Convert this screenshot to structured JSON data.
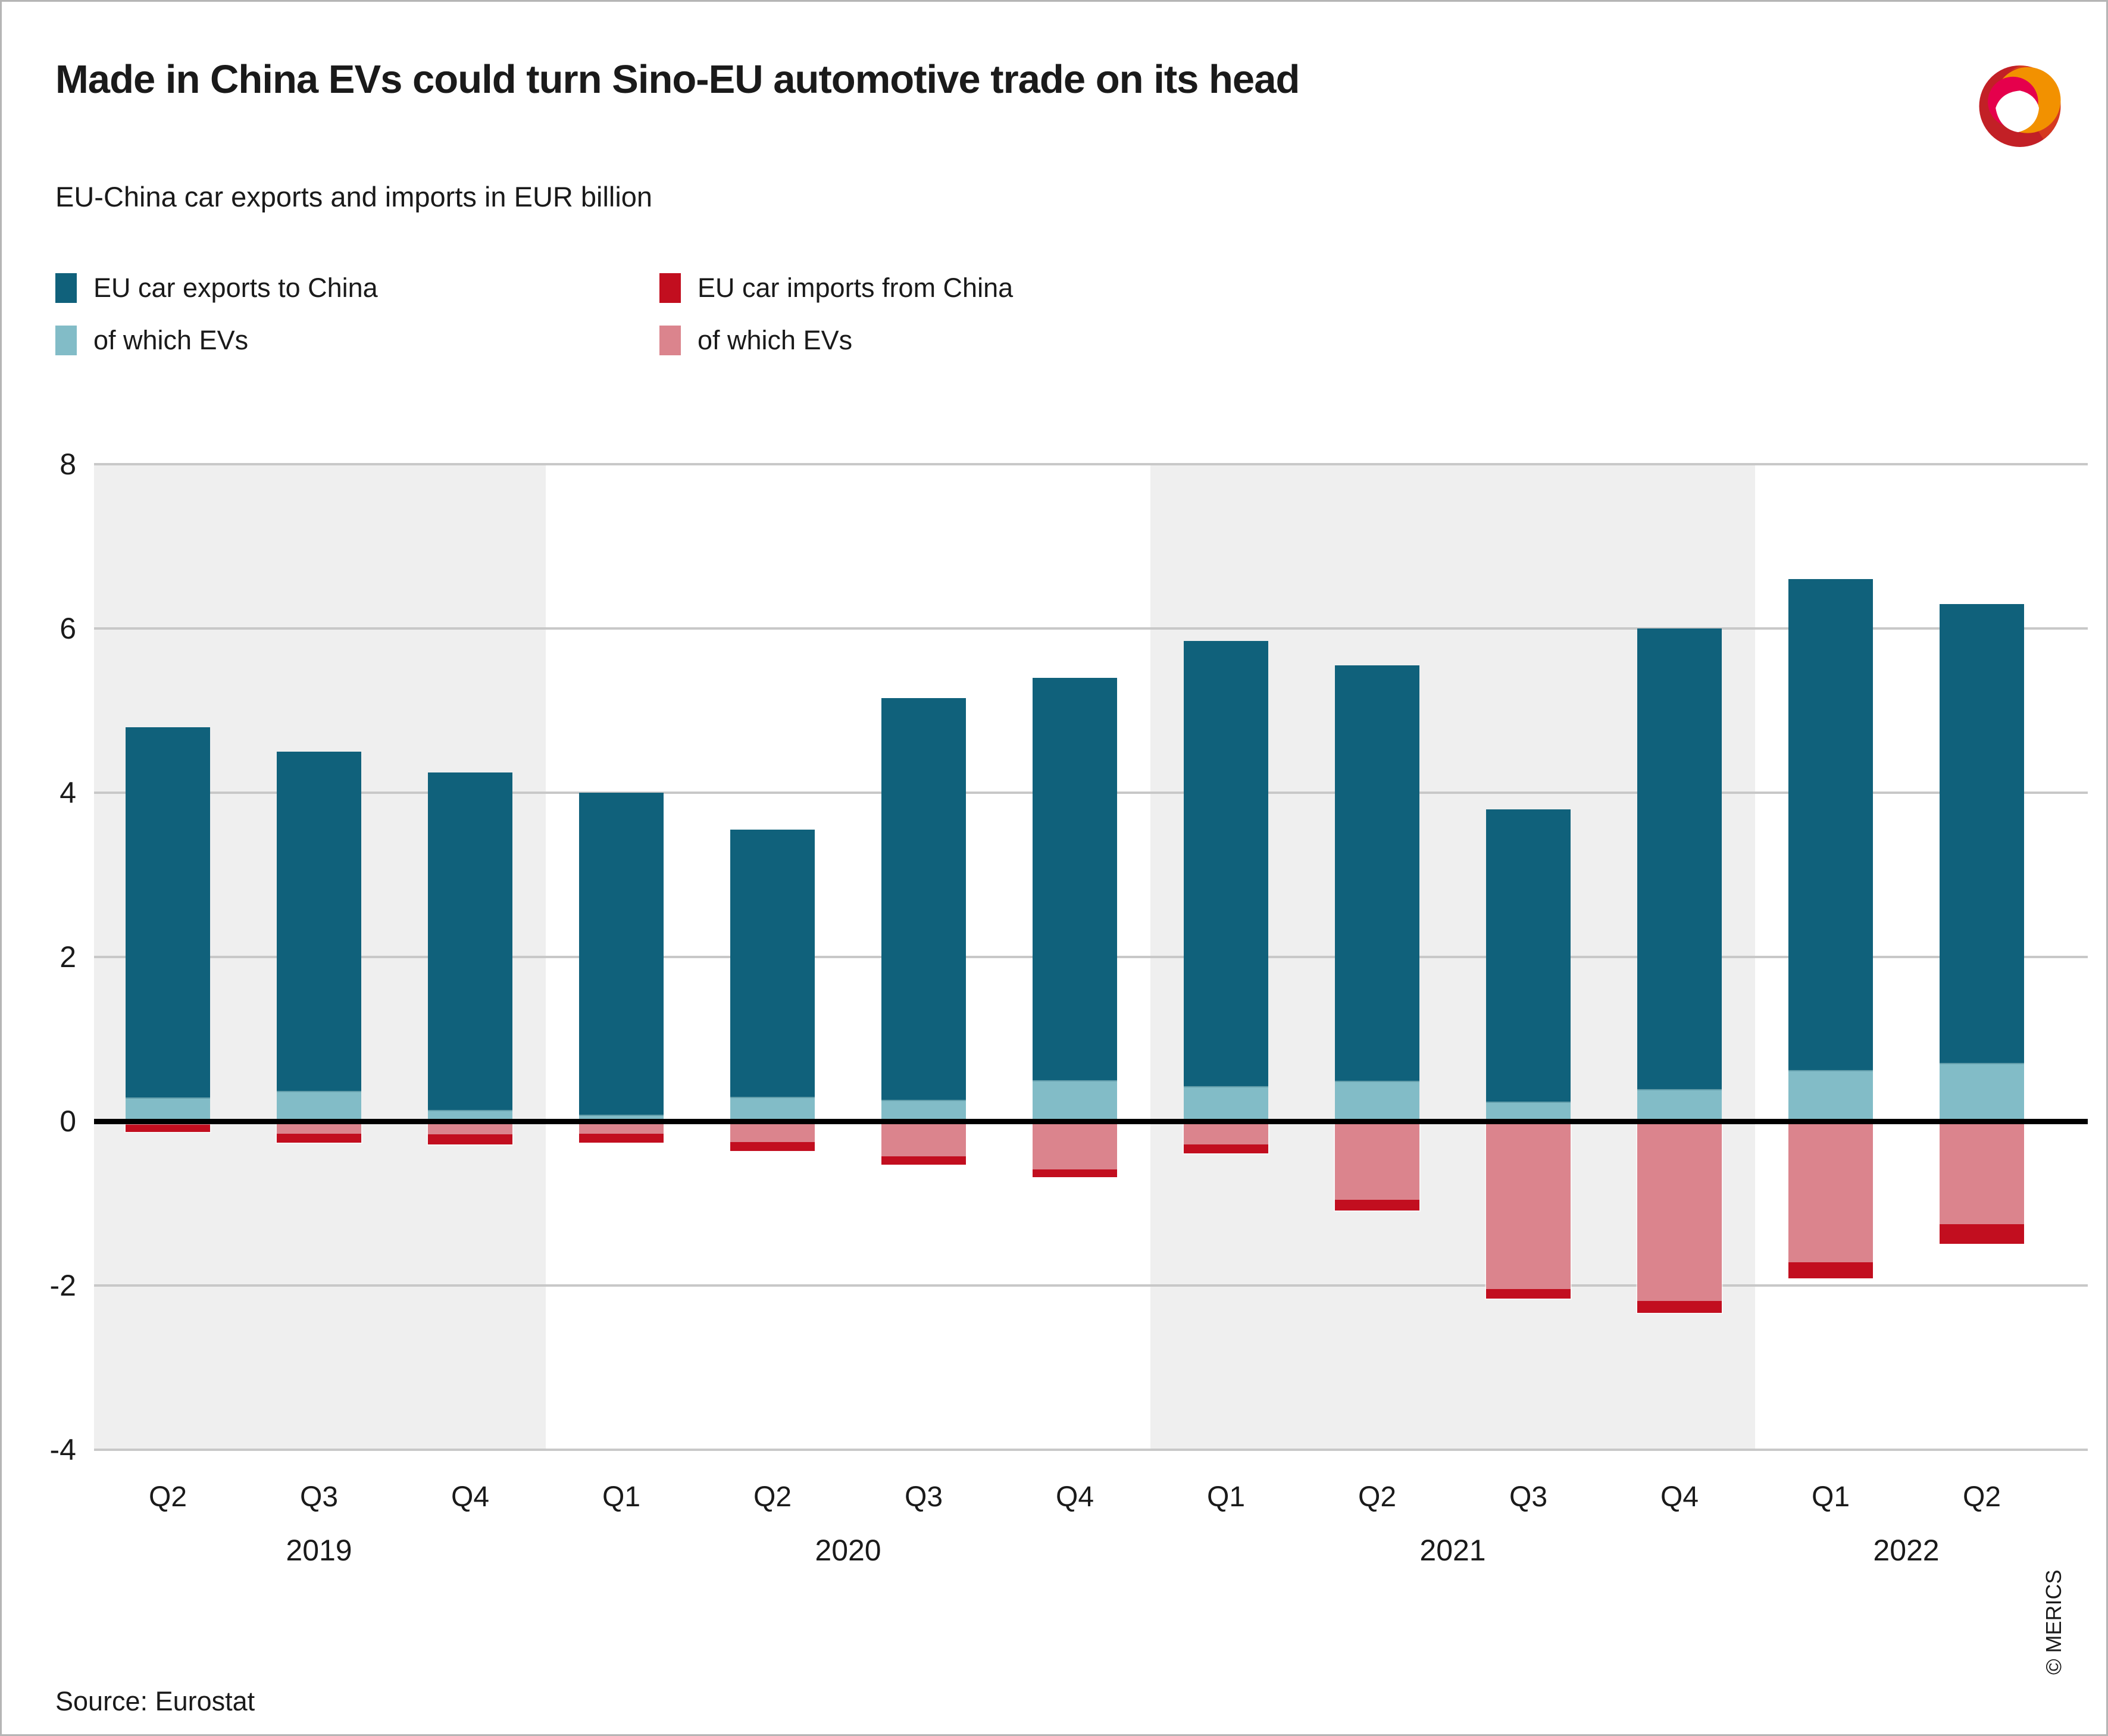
{
  "header": {
    "title": "Made in China EVs could turn Sino-EU automotive trade on its head",
    "subtitle": "EU-China car exports and imports in EUR billion"
  },
  "footer": {
    "source": "Source: Eurostat",
    "credit": "© MERICS"
  },
  "logo_colors": {
    "dark_red": "#c22026",
    "orange": "#f29100",
    "magenta": "#e5004c",
    "flame": "#e84e1b"
  },
  "chart_data": {
    "type": "bar",
    "title": "Made in China EVs could turn Sino-EU automotive trade on its head",
    "subtitle": "EU-China car exports and imports in EUR billion",
    "ylim": [
      -4,
      8
    ],
    "yticks": [
      8,
      6,
      4,
      2,
      0,
      -2,
      -4
    ],
    "grid": "horizontal",
    "legend_position": "top-left",
    "categories": [
      "Q2",
      "Q3",
      "Q4",
      "Q1",
      "Q2",
      "Q3",
      "Q4",
      "Q1",
      "Q2",
      "Q3",
      "Q4",
      "Q1",
      "Q2"
    ],
    "groups": [
      {
        "label": "2019",
        "count": 3,
        "shaded": true
      },
      {
        "label": "2020",
        "count": 4,
        "shaded": false
      },
      {
        "label": "2021",
        "count": 4,
        "shaded": true
      },
      {
        "label": "2022",
        "count": 2,
        "shaded": false
      }
    ],
    "band_color": "#efefef",
    "series": [
      {
        "name": "EU car exports to China",
        "color": "#10617b",
        "role": "total-positive",
        "values": [
          4.8,
          4.5,
          4.25,
          4.0,
          3.55,
          5.15,
          5.4,
          5.85,
          5.55,
          3.8,
          6.0,
          6.6,
          6.3
        ]
      },
      {
        "name": "of which EVs",
        "color": "#82bcc7",
        "role": "overlay-positive",
        "values": [
          0.29,
          0.37,
          0.14,
          0.08,
          0.3,
          0.26,
          0.5,
          0.43,
          0.49,
          0.24,
          0.39,
          0.62,
          0.71
        ]
      },
      {
        "name": "EU car imports from China",
        "color": "#c20e1f",
        "role": "total-negative",
        "values": [
          -0.13,
          -0.26,
          -0.28,
          -0.26,
          -0.36,
          -0.53,
          -0.68,
          -0.39,
          -1.09,
          -2.16,
          -2.33,
          -1.91,
          -1.49
        ]
      },
      {
        "name": "of which EVs",
        "color": "#db848d",
        "role": "overlay-negative",
        "values": [
          -0.04,
          -0.15,
          -0.16,
          -0.15,
          -0.25,
          -0.43,
          -0.59,
          -0.28,
          -0.96,
          -2.04,
          -2.19,
          -1.72,
          -1.25
        ]
      }
    ]
  }
}
